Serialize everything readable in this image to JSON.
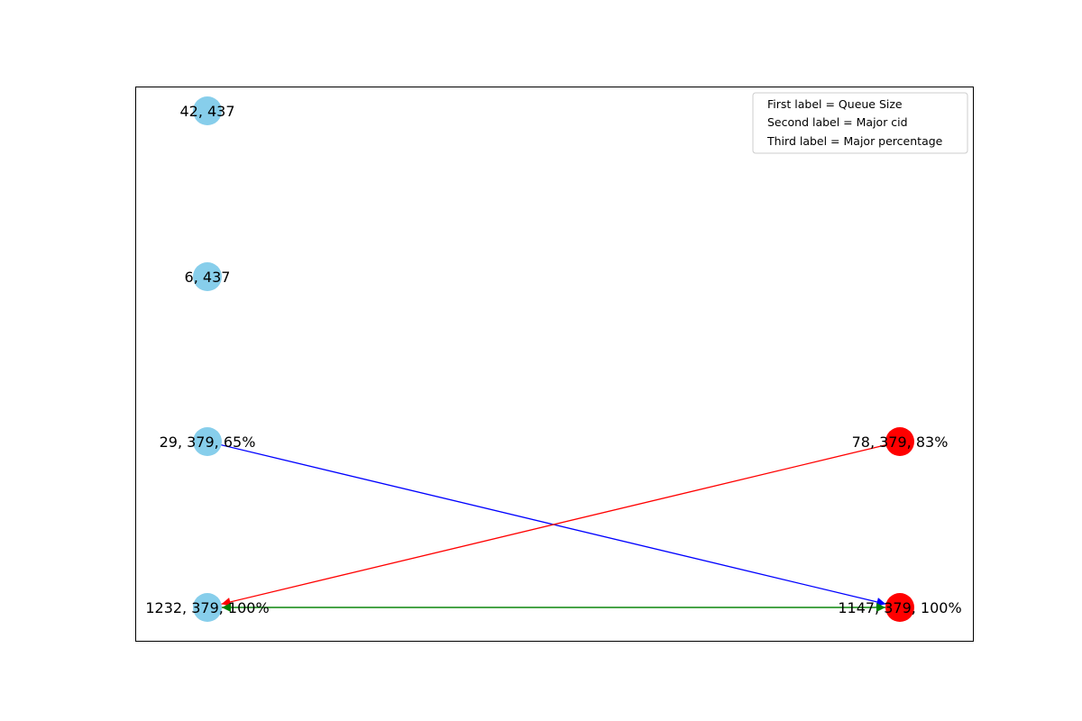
{
  "legend": {
    "entries": [
      "First label = Queue Size",
      "Second label = Major cid",
      "Third label = Major percentage"
    ]
  },
  "colors": {
    "node_left": "#87CEEB",
    "node_right": "#FF0000",
    "edge_blue": "#0000FF",
    "edge_red": "#FF0000",
    "edge_green": "#008000",
    "frame": "#000000"
  },
  "nodes": [
    {
      "id": "n1",
      "label": "42, 437",
      "color": "#87CEEB",
      "shape": "circle"
    },
    {
      "id": "n2",
      "label": "6, 437",
      "color": "#87CEEB",
      "shape": "circle"
    },
    {
      "id": "n3",
      "label": "29, 379, 65%",
      "color": "#87CEEB",
      "shape": "circle"
    },
    {
      "id": "n4",
      "label": "1232, 379, 100%",
      "color": "#87CEEB",
      "shape": "circle"
    },
    {
      "id": "n5",
      "label": "78, 379, 83%",
      "color": "#FF0000",
      "shape": "circle"
    },
    {
      "id": "n6",
      "label": "1147, 379, 100%",
      "color": "#FF0000",
      "shape": "circle"
    }
  ],
  "edges": [
    {
      "from": "n3",
      "to": "n6",
      "color": "#0000FF",
      "directed": true
    },
    {
      "from": "n5",
      "to": "n4",
      "color": "#FF0000",
      "directed": true
    },
    {
      "from": "n4",
      "to": "n6",
      "color": "#008000",
      "directed": true
    },
    {
      "from": "n6",
      "to": "n4",
      "color": "#008000",
      "directed": true
    }
  ]
}
